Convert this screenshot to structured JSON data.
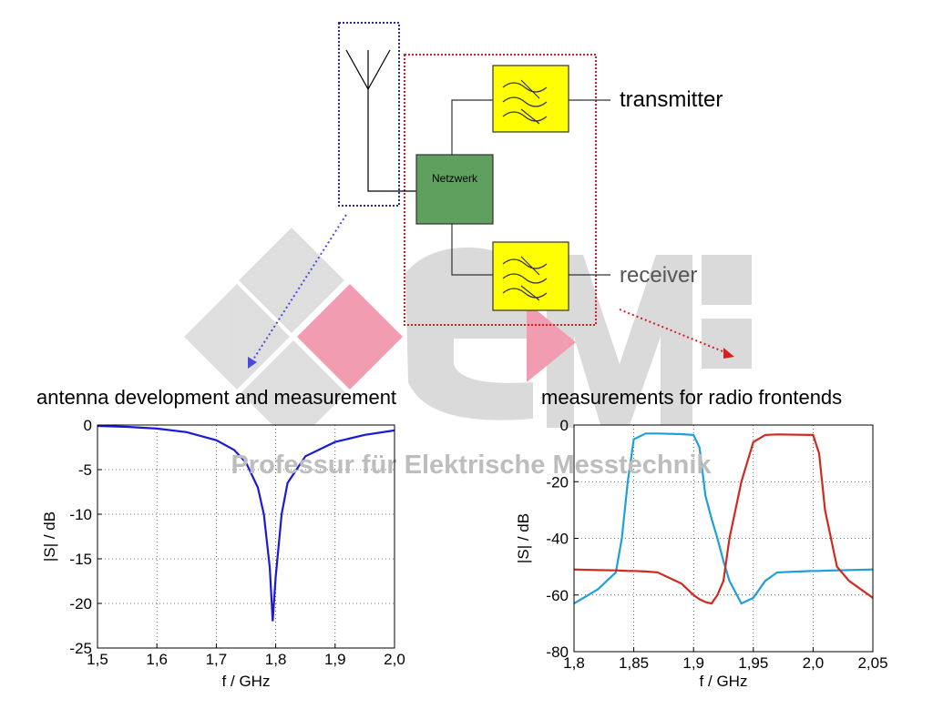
{
  "diagram": {
    "network": "Netzwerk",
    "transmitter": "transmitter",
    "receiver": "receiver"
  },
  "watermark": "Professur für Elektrische Messtechnik",
  "chart_data": [
    {
      "type": "line",
      "title": "antenna development and measurement",
      "xlabel": "f / GHz",
      "ylabel": "|S| / dB",
      "xlim": [
        1.5,
        2.0
      ],
      "xticks": [
        {
          "value": 1.5,
          "label": "1,5"
        },
        {
          "value": 1.6,
          "label": "1,6"
        },
        {
          "value": 1.7,
          "label": "1,7"
        },
        {
          "value": 1.8,
          "label": "1,8"
        },
        {
          "value": 1.9,
          "label": "1,9"
        },
        {
          "value": 2.0,
          "label": "2,0"
        }
      ],
      "ylim": [
        -25,
        0
      ],
      "yticks": [
        0,
        -5,
        -10,
        -15,
        -20,
        -25
      ],
      "grid": true,
      "x": [
        1.5,
        1.55,
        1.6,
        1.65,
        1.7,
        1.73,
        1.75,
        1.77,
        1.78,
        1.79,
        1.795,
        1.8,
        1.81,
        1.82,
        1.85,
        1.9,
        1.95,
        2.0
      ],
      "series": [
        {
          "color": "#1a1ad6",
          "values": [
            -0.1,
            -0.2,
            -0.4,
            -0.8,
            -1.7,
            -2.8,
            -4.2,
            -7,
            -10,
            -16,
            -22,
            -17,
            -10,
            -6.5,
            -3.5,
            -1.9,
            -1.1,
            -0.6
          ]
        }
      ]
    },
    {
      "type": "line",
      "title": "measurements for radio frontends",
      "xlabel": "f / GHz",
      "ylabel": "|S| / dB",
      "xlim": [
        1.8,
        2.05
      ],
      "xticks": [
        {
          "value": 1.8,
          "label": "1,8"
        },
        {
          "value": 1.85,
          "label": "1,85"
        },
        {
          "value": 1.9,
          "label": "1,9"
        },
        {
          "value": 1.95,
          "label": "1,95"
        },
        {
          "value": 2.0,
          "label": "2,0"
        },
        {
          "value": 2.05,
          "label": "2,05"
        }
      ],
      "ylim": [
        -80,
        0
      ],
      "yticks": [
        0,
        -20,
        -40,
        -60,
        -80
      ],
      "grid": true,
      "x": [
        1.8,
        1.82,
        1.835,
        1.84,
        1.845,
        1.85,
        1.86,
        1.87,
        1.89,
        1.9,
        1.905,
        1.91,
        1.915,
        1.92,
        1.925,
        1.93,
        1.94,
        1.95,
        1.96,
        1.97,
        2.0,
        2.005,
        2.01,
        2.02,
        2.03,
        2.05
      ],
      "series": [
        {
          "color": "#1e9fdc",
          "values": [
            -63,
            -58,
            -52,
            -40,
            -20,
            -5,
            -3,
            -3,
            -3.2,
            -3.5,
            -8,
            -25,
            -33,
            -40,
            -48,
            -55,
            -63,
            -61,
            -55,
            -52,
            -51.5,
            -51.5,
            -51.4,
            -51.3,
            -51.2,
            -51
          ]
        },
        {
          "color": "#d02a20",
          "values": [
            -51,
            -51.2,
            -51.3,
            -51.4,
            -51.5,
            -51.5,
            -51.7,
            -52,
            -56,
            -60,
            -61.5,
            -62.5,
            -63,
            -60,
            -55,
            -40,
            -20,
            -6,
            -3.5,
            -3.3,
            -3.5,
            -10,
            -30,
            -50,
            -55,
            -61
          ]
        }
      ]
    }
  ]
}
